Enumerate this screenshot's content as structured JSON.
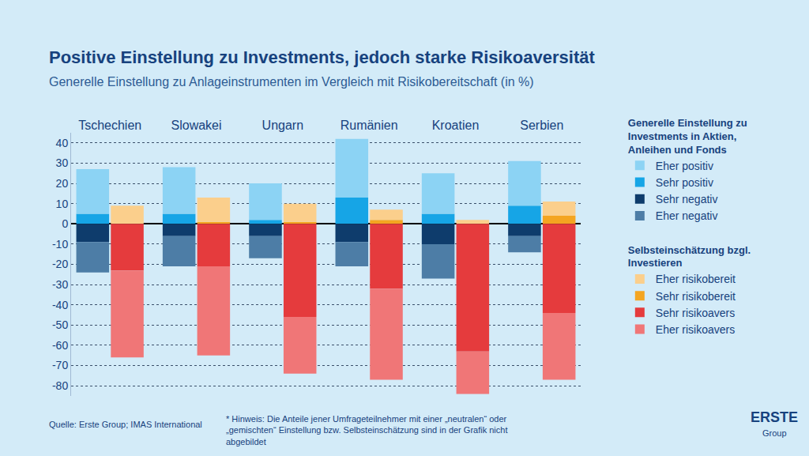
{
  "chart_data": {
    "type": "bar",
    "stacked": true,
    "title": "Positive Einstellung zu Investments, jedoch starke Risikoaversität",
    "subtitle": "Generelle Einstellung zu Anlageinstrumenten im Vergleich mit Risikobereitschaft (in %)",
    "categories": [
      "Tschechien",
      "Slowakei",
      "Ungarn",
      "Rumänien",
      "Kroatien",
      "Serbien"
    ],
    "groups": [
      {
        "name": "Generelle Einstellung zu Investments in Aktien, Anleihen und Fonds",
        "series": [
          {
            "name": "Sehr positiv",
            "color": "#16a5e6",
            "values": [
              5,
              5,
              2,
              13,
              5,
              9
            ]
          },
          {
            "name": "Eher positiv",
            "color": "#8cd3f4",
            "values": [
              22,
              23,
              18,
              29,
              20,
              22
            ]
          },
          {
            "name": "Sehr negativ",
            "color": "#0e3c6c",
            "values": [
              -9,
              -6,
              -6,
              -9,
              -10,
              -6
            ]
          },
          {
            "name": "Eher negativ",
            "color": "#4d7da6",
            "values": [
              -15,
              -15,
              -11,
              -12,
              -17,
              -8
            ]
          }
        ]
      },
      {
        "name": "Selbsteinschätzung bzgl. Investieren",
        "series": [
          {
            "name": "Sehr risikobereit",
            "color": "#f4a521",
            "values": [
              0,
              1,
              1,
              2,
              0,
              4
            ]
          },
          {
            "name": "Eher risikobereit",
            "color": "#fbcf8c",
            "values": [
              9,
              12,
              9,
              5,
              2,
              7
            ]
          },
          {
            "name": "Sehr risikoavers",
            "color": "#e53b3d",
            "values": [
              -23,
              -21,
              -46,
              -32,
              -63,
              -44
            ]
          },
          {
            "name": "Eher risikoavers",
            "color": "#f07677",
            "values": [
              -43,
              -44,
              -28,
              -45,
              -21,
              -33
            ]
          }
        ]
      }
    ],
    "ylim": [
      -85,
      45
    ],
    "yticks": [
      -80,
      -70,
      -60,
      -50,
      -40,
      -30,
      -20,
      -10,
      0,
      10,
      20,
      30,
      40
    ],
    "grid": true,
    "legend": "right",
    "source": "Quelle: Erste Group; IMAS International",
    "note": "* Hinweis: Die Anteile jener Umfrageteilnehmer mit einer „neutralen“ oder „gemischten“ Einstellung bzw. Selbsteinschätzung sind in der Grafik nicht abgebildet",
    "logo": [
      "ERSTE",
      "Group"
    ]
  }
}
